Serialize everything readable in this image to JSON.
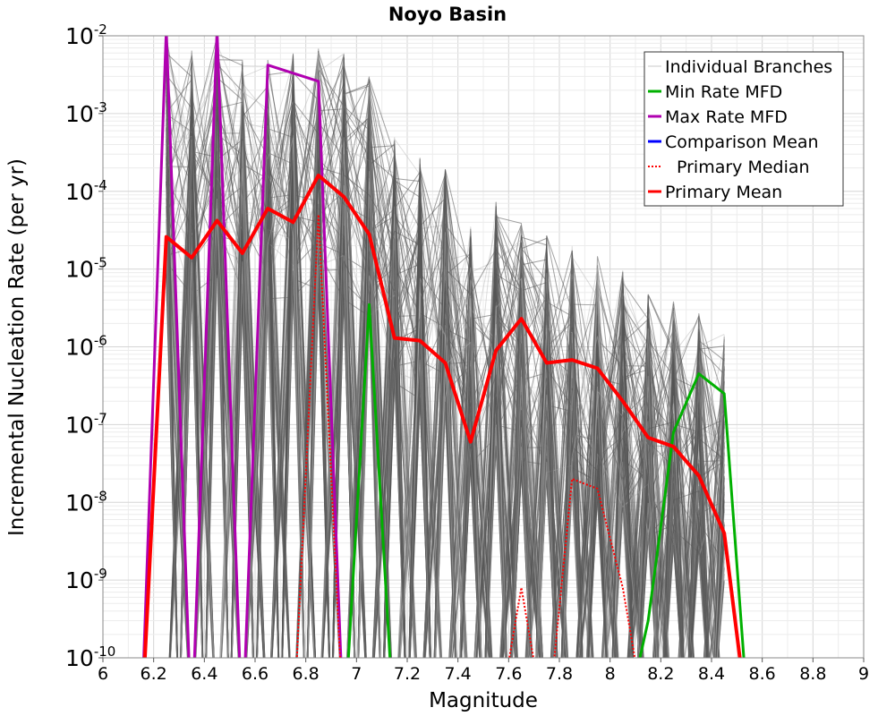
{
  "chart_data": {
    "type": "line",
    "title": "Noyo Basin",
    "xlabel": "Magnitude",
    "ylabel": "Incremental Nucleation Rate (per yr)",
    "xlim": [
      6,
      9
    ],
    "ylim": [
      1e-10,
      0.01
    ],
    "yscale": "log",
    "grid": true,
    "legend_position": "top-right",
    "x_ticks": [
      "6",
      "6.2",
      "6.4",
      "6.6",
      "6.8",
      "7",
      "7.2",
      "7.4",
      "7.6",
      "7.8",
      "8",
      "8.2",
      "8.4",
      "8.6",
      "8.8",
      "9"
    ],
    "y_ticks": [
      {
        "base": "10",
        "exp": "-10",
        "value": 1e-10
      },
      {
        "base": "10",
        "exp": "-9",
        "value": 1e-09
      },
      {
        "base": "10",
        "exp": "-8",
        "value": 1e-08
      },
      {
        "base": "10",
        "exp": "-7",
        "value": 1e-07
      },
      {
        "base": "10",
        "exp": "-6",
        "value": 1e-06
      },
      {
        "base": "10",
        "exp": "-5",
        "value": 1e-05
      },
      {
        "base": "10",
        "exp": "-4",
        "value": 0.0001
      },
      {
        "base": "10",
        "exp": "-3",
        "value": 0.001
      },
      {
        "base": "10",
        "exp": "-2",
        "value": 0.01
      }
    ],
    "legend": [
      {
        "label": "Individual Branches",
        "color": "#c8c8c8",
        "style": "solid"
      },
      {
        "label": "Min Rate MFD",
        "color": "#00b000",
        "style": "solid"
      },
      {
        "label": "Max Rate MFD",
        "color": "#b000b0",
        "style": "solid"
      },
      {
        "label": "Comparison Mean",
        "color": "#0000ff",
        "style": "solid"
      },
      {
        "label": "Primary Median",
        "color": "#ff0000",
        "style": "dotted"
      },
      {
        "label": "Primary Mean",
        "color": "#ff0000",
        "style": "solid"
      }
    ],
    "branch_envelope": {
      "name": "Individual Branches",
      "color": "#555555",
      "x": [
        6.25,
        6.35,
        6.45,
        6.55,
        6.65,
        6.75,
        6.85,
        6.95,
        7.05,
        7.15,
        7.25,
        7.35,
        7.45,
        7.55,
        7.65,
        7.75,
        7.85,
        7.95,
        8.05,
        8.15,
        8.25,
        8.35,
        8.45
      ],
      "max": [
        0.01,
        0.007,
        0.01,
        0.005,
        0.005,
        0.006,
        0.007,
        0.006,
        0.003,
        0.0005,
        0.0003,
        0.0002,
        4e-05,
        8e-05,
        4e-05,
        3e-05,
        2e-05,
        1.5e-05,
        1e-05,
        5e-06,
        4e-06,
        3e-06,
        1.5e-06
      ]
    },
    "series": [
      {
        "name": "Min Rate MFD",
        "color": "#00b000",
        "x": [
          6.95,
          7.05,
          7.15,
          8.05,
          8.15,
          8.25,
          8.35,
          8.45,
          8.55
        ],
        "values": [
          1e-11,
          3.5e-06,
          1e-11,
          1e-11,
          3e-10,
          8e-08,
          4.5e-07,
          2.5e-07,
          1e-11
        ]
      },
      {
        "name": "Max Rate MFD",
        "color": "#b000b0",
        "x": [
          6.15,
          6.25,
          6.35,
          6.45,
          6.55,
          6.65,
          6.85,
          6.95
        ],
        "values": [
          1e-11,
          0.012,
          1e-11,
          0.012,
          1e-11,
          0.0042,
          0.0026,
          1e-11
        ]
      },
      {
        "name": "Comparison Mean",
        "color": "#0000ff",
        "x": [
          7.15,
          7.25,
          7.35
        ],
        "values": [
          1.3e-06,
          1.2e-06,
          6.2e-07
        ]
      },
      {
        "name": "Primary Median",
        "color": "#ff0000",
        "style": "dotted",
        "x": [
          6.75,
          6.85,
          6.95,
          7.55,
          7.65,
          7.75,
          7.85,
          7.95,
          8.05,
          8.15
        ],
        "values": [
          1e-11,
          5e-05,
          1e-11,
          1e-11,
          8e-10,
          1e-11,
          2e-08,
          1.5e-08,
          8e-10,
          1e-11
        ]
      },
      {
        "name": "Primary Mean",
        "color": "#ff0000",
        "style": "solid",
        "x": [
          6.15,
          6.25,
          6.35,
          6.45,
          6.55,
          6.65,
          6.75,
          6.85,
          6.95,
          7.05,
          7.15,
          7.25,
          7.35,
          7.45,
          7.55,
          7.65,
          7.75,
          7.85,
          7.95,
          8.05,
          8.15,
          8.25,
          8.35,
          8.45,
          8.55
        ],
        "values": [
          1e-11,
          2.6e-05,
          1.4e-05,
          4.2e-05,
          1.6e-05,
          6e-05,
          4e-05,
          0.00016,
          8.5e-05,
          2.8e-05,
          1.3e-06,
          1.2e-06,
          6.2e-07,
          6e-08,
          9e-07,
          2.3e-06,
          6.2e-07,
          6.8e-07,
          5.3e-07,
          2e-07,
          6.8e-08,
          5.2e-08,
          2.2e-08,
          4e-09,
          1e-11
        ]
      }
    ]
  }
}
